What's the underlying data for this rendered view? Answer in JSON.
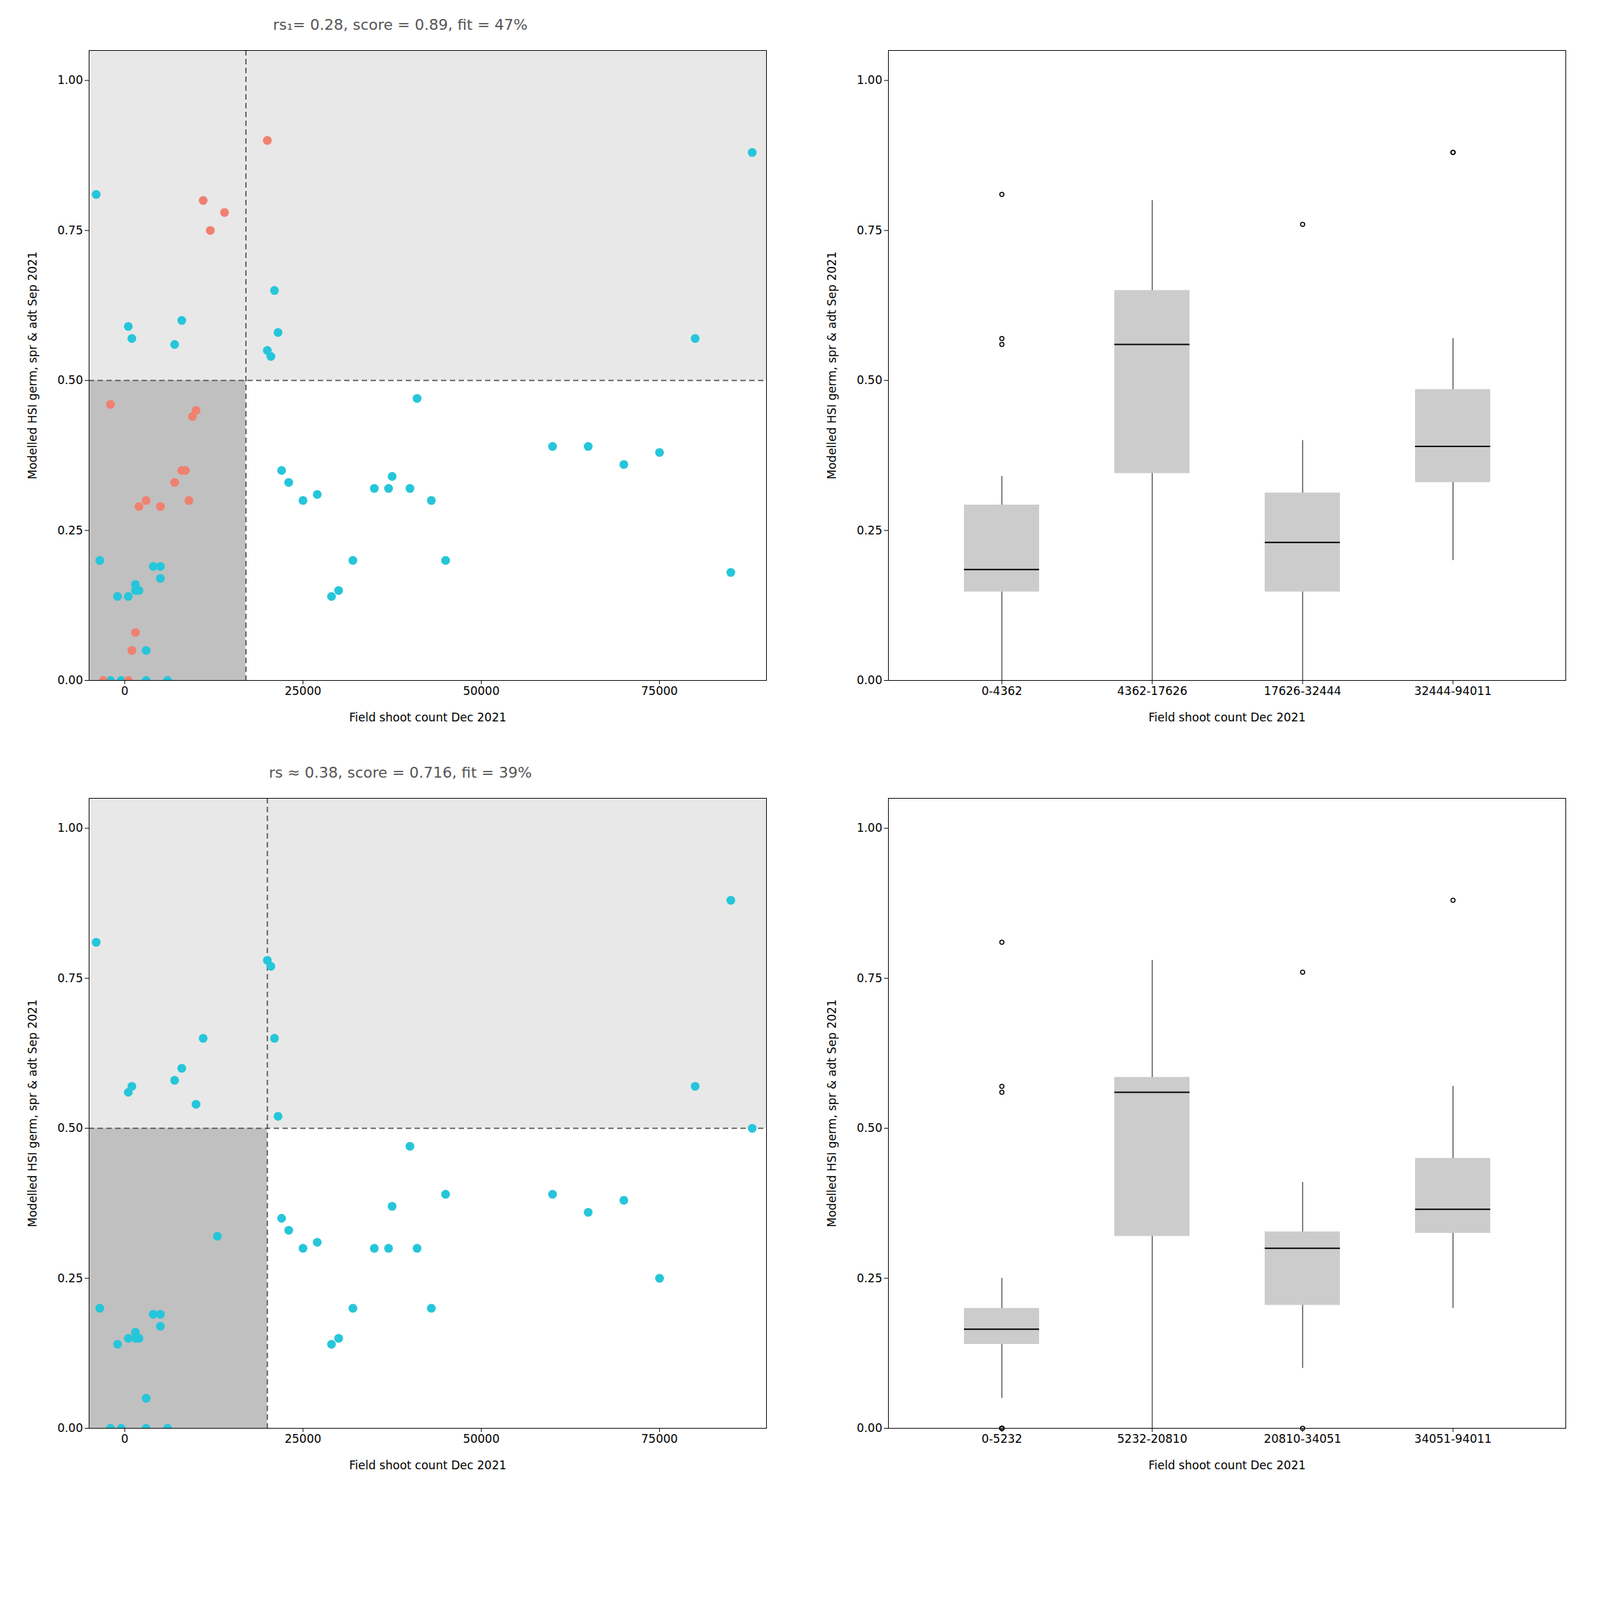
{
  "chart_data": [
    {
      "type": "scatter",
      "title": "rs₁= 0.28, score = 0.89, fit = 47%",
      "xlabel": "Field shoot count Dec 2021",
      "ylabel": "Modelled HSI germ, spr & adt Sep 2021",
      "xlim": [
        -5000,
        90000
      ],
      "ylim": [
        0.0,
        1.05
      ],
      "xticks": [
        0,
        25000,
        50000,
        75000
      ],
      "yticks": [
        {
          "value": 0.0,
          "label": "0.00"
        },
        {
          "value": 0.25,
          "label": "0.25"
        },
        {
          "value": 0.5,
          "label": "0.50"
        },
        {
          "value": 0.75,
          "label": "0.75"
        },
        {
          "value": 1.0,
          "label": "1.00"
        }
      ],
      "vline": 17000,
      "hline": 0.5,
      "colors": [
        "#E8E8E8",
        "#C0C0C0",
        "#E8E8E8",
        "white"
      ],
      "grid": false,
      "series": [
        {
          "color": "#26C6DA",
          "x": [
            -4000,
            -3500,
            -2000,
            -1000,
            -500,
            500,
            500,
            1000,
            1500,
            1500,
            2000,
            3000,
            3000,
            4000,
            5000,
            5000,
            6000,
            7000,
            8000,
            20000,
            20500,
            21000,
            21500,
            22000,
            23000,
            25000,
            27000,
            29000,
            30000,
            32000,
            35000,
            37000,
            37500,
            40000,
            41000,
            43000,
            45000,
            60000,
            65000,
            70000,
            75000,
            80000,
            85000,
            88000
          ],
          "values": [
            0.81,
            0.2,
            0.0,
            0.14,
            0.0,
            0.14,
            0.59,
            0.57,
            0.15,
            0.16,
            0.15,
            0.0,
            0.05,
            0.19,
            0.19,
            0.17,
            0.0,
            0.56,
            0.6,
            0.55,
            0.54,
            0.65,
            0.58,
            0.35,
            0.33,
            0.3,
            0.31,
            0.14,
            0.15,
            0.2,
            0.32,
            0.32,
            0.34,
            0.32,
            0.47,
            0.3,
            0.2,
            0.39,
            0.39,
            0.36,
            0.38,
            0.57,
            0.18,
            0.88
          ]
        },
        {
          "color": "#F08070",
          "x": [
            -3000,
            500,
            1000,
            1500,
            2000,
            3000,
            5000,
            7000,
            8000,
            8500,
            9000,
            9500,
            10000,
            11000,
            12000,
            14000,
            20000,
            -2000
          ],
          "values": [
            0.0,
            0.0,
            0.05,
            0.08,
            0.29,
            0.3,
            0.29,
            0.33,
            0.35,
            0.35,
            0.3,
            0.44,
            0.45,
            0.8,
            0.75,
            0.78,
            0.9,
            0.46
          ]
        }
      ]
    },
    {
      "type": "box",
      "xlabel": "Field shoot count Dec 2021",
      "ylabel": "Modelled HSI germ, spr & adt Sep 2021",
      "categories": [
        "0-4362",
        "4362-17626",
        "17626-32444",
        "32444-94011"
      ],
      "values": [
        [
          0.0,
          0.0,
          0.05,
          0.08,
          0.14,
          0.15,
          0.15,
          0.16,
          0.17,
          0.18,
          0.19,
          0.19,
          0.2,
          0.2,
          0.29,
          0.3,
          0.34,
          0.56,
          0.57,
          0.81
        ],
        [
          0.0,
          0.05,
          0.29,
          0.3,
          0.33,
          0.35,
          0.35,
          0.44,
          0.54,
          0.55,
          0.57,
          0.58,
          0.59,
          0.6,
          0.65,
          0.65,
          0.66,
          0.75,
          0.78,
          0.8
        ],
        [
          0.0,
          0.0,
          0.05,
          0.1,
          0.14,
          0.15,
          0.2,
          0.2,
          0.21,
          0.22,
          0.24,
          0.25,
          0.25,
          0.3,
          0.31,
          0.32,
          0.34,
          0.38,
          0.4,
          0.76
        ],
        [
          0.2,
          0.25,
          0.3,
          0.32,
          0.32,
          0.34,
          0.35,
          0.36,
          0.38,
          0.39,
          0.39,
          0.4,
          0.44,
          0.47,
          0.5,
          0.51,
          0.57,
          0.88,
          0.88
        ]
      ],
      "ylim": [
        0.0,
        1.05
      ],
      "yticks": [
        {
          "value": 0.0,
          "label": "0.00"
        },
        {
          "value": 0.25,
          "label": "0.25"
        },
        {
          "value": 0.5,
          "label": "0.50"
        },
        {
          "value": 0.75,
          "label": "0.75"
        },
        {
          "value": 1.0,
          "label": "1.00"
        }
      ],
      "grid": false
    },
    {
      "type": "scatter",
      "title": "rs ≈ 0.38, score = 0.716, fit = 39%",
      "xlabel": "Field shoot count Dec 2021",
      "ylabel": "Modelled HSI germ, spr & adt Sep 2021",
      "xlim": [
        -5000,
        90000
      ],
      "ylim": [
        0.0,
        1.05
      ],
      "xticks": [
        0,
        25000,
        50000,
        75000
      ],
      "yticks": [
        {
          "value": 0.0,
          "label": "0.00"
        },
        {
          "value": 0.25,
          "label": "0.25"
        },
        {
          "value": 0.5,
          "label": "0.50"
        },
        {
          "value": 0.75,
          "label": "0.75"
        },
        {
          "value": 1.0,
          "label": "1.00"
        }
      ],
      "vline": 20000,
      "hline": 0.5,
      "colors": [
        "#E8E8E8",
        "#C0C0C0",
        "#E8E8E8",
        "white"
      ],
      "grid": false,
      "series": [
        {
          "color": "#26C6DA",
          "x": [
            -4000,
            -3500,
            -2000,
            -1000,
            -500,
            500,
            500,
            1000,
            1500,
            1500,
            2000,
            3000,
            3000,
            4000,
            5000,
            5000,
            6000,
            7000,
            8000,
            10000,
            11000,
            13000,
            20000,
            20500,
            21000,
            21500,
            22000,
            23000,
            25000,
            27000,
            29000,
            30000,
            32000,
            35000,
            37000,
            37500,
            40000,
            41000,
            43000,
            45000,
            60000,
            65000,
            70000,
            75000,
            80000,
            85000,
            88000
          ],
          "values": [
            0.81,
            0.2,
            0.0,
            0.14,
            0.0,
            0.15,
            0.56,
            0.57,
            0.15,
            0.16,
            0.15,
            0.0,
            0.05,
            0.19,
            0.19,
            0.17,
            0.0,
            0.58,
            0.6,
            0.54,
            0.65,
            0.32,
            0.78,
            0.77,
            0.65,
            0.52,
            0.35,
            0.33,
            0.3,
            0.31,
            0.14,
            0.15,
            0.2,
            0.3,
            0.3,
            0.37,
            0.47,
            0.3,
            0.2,
            0.39,
            0.39,
            0.36,
            0.38,
            0.25,
            0.57,
            0.88,
            0.5
          ]
        }
      ]
    },
    {
      "type": "box",
      "xlabel": "Field shoot count Dec 2021",
      "ylabel": "Modelled HSI germ, spr & adt Sep 2021",
      "categories": [
        "0-5232",
        "5232-20810",
        "20810-34051",
        "34051-94011"
      ],
      "values": [
        [
          0.0,
          0.0,
          0.0,
          0.0,
          0.05,
          0.14,
          0.14,
          0.15,
          0.15,
          0.15,
          0.16,
          0.17,
          0.18,
          0.19,
          0.19,
          0.2,
          0.2,
          0.24,
          0.25,
          0.56,
          0.57,
          0.81
        ],
        [
          0.0,
          0.05,
          0.3,
          0.3,
          0.31,
          0.33,
          0.35,
          0.52,
          0.54,
          0.56,
          0.57,
          0.57,
          0.58,
          0.58,
          0.59,
          0.6,
          0.65,
          0.65,
          0.78
        ],
        [
          0.0,
          0.1,
          0.14,
          0.2,
          0.2,
          0.22,
          0.25,
          0.29,
          0.3,
          0.3,
          0.3,
          0.31,
          0.32,
          0.33,
          0.34,
          0.38,
          0.41,
          0.76
        ],
        [
          0.2,
          0.25,
          0.3,
          0.32,
          0.34,
          0.35,
          0.36,
          0.37,
          0.38,
          0.39,
          0.47,
          0.5,
          0.57,
          0.88
        ]
      ],
      "ylim": [
        0.0,
        1.05
      ],
      "yticks": [
        {
          "value": 0.0,
          "label": "0.00"
        },
        {
          "value": 0.25,
          "label": "0.25"
        },
        {
          "value": 0.5,
          "label": "0.50"
        },
        {
          "value": 0.75,
          "label": "0.75"
        },
        {
          "value": 1.0,
          "label": "1.00"
        }
      ],
      "grid": false
    }
  ]
}
